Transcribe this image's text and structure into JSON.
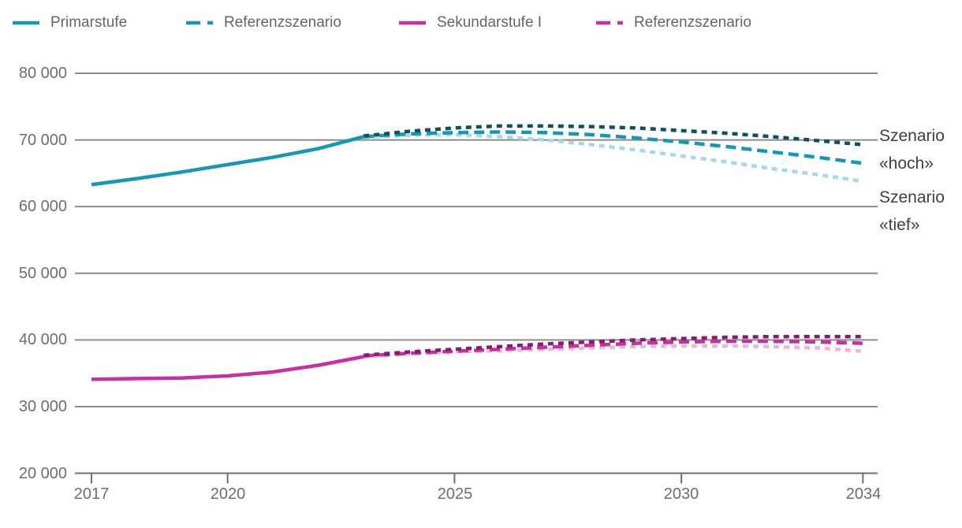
{
  "legend": {
    "items": [
      {
        "label": "Primarstufe",
        "color": "#1399B5",
        "style": "solid"
      },
      {
        "label": "Referenzszenario",
        "color": "#1399B5",
        "style": "long-dash"
      },
      {
        "label": "Sekundarstufe I",
        "color": "#C92FA3",
        "style": "solid"
      },
      {
        "label": "Referenzszenario",
        "color": "#C92FA3",
        "style": "long-dash"
      }
    ]
  },
  "y_axis": {
    "ticks": [
      {
        "label": "80 000",
        "value": 80000
      },
      {
        "label": "70 000",
        "value": 70000
      },
      {
        "label": "60 000",
        "value": 60000
      },
      {
        "label": "50 000",
        "value": 50000
      },
      {
        "label": "40 000",
        "value": 40000
      },
      {
        "label": "30 000",
        "value": 30000
      },
      {
        "label": "20 000",
        "value": 20000
      }
    ]
  },
  "x_axis": {
    "ticks": [
      {
        "label": "2017",
        "value": 2017
      },
      {
        "label": "2020",
        "value": 2020
      },
      {
        "label": "2025",
        "value": 2025
      },
      {
        "label": "2030",
        "value": 2030
      },
      {
        "label": "2034",
        "value": 2034
      }
    ]
  },
  "annotations": {
    "hoch": "Szenario «hoch»",
    "tief": "Szenario «tief»"
  },
  "colors": {
    "teal": "#1399B5",
    "teal_dark": "#0F5161",
    "teal_light": "#A6D9E4",
    "magenta": "#C92FA3",
    "magenta_dark": "#871A72",
    "magenta_light": "#EBB6DE",
    "gridline": "#8B8B8B",
    "axis": "#6F6F6F",
    "tick_text": "#6E6E6E",
    "legend_text": "#63656A",
    "annotation_text": "#3E4043"
  },
  "chart_data": {
    "type": "line",
    "title": "",
    "xlabel": "",
    "ylabel": "",
    "xlim": [
      2017,
      2034
    ],
    "ylim": [
      20000,
      80000
    ],
    "grid": "horizontal",
    "legend_position": "top-left",
    "series": [
      {
        "name": "Primarstufe — Szenario «tief»",
        "color": "#A6D9E4",
        "style": "short-dash",
        "x": [
          2023,
          2024,
          2025,
          2026,
          2027,
          2028,
          2029,
          2030,
          2031,
          2032,
          2033,
          2034
        ],
        "values": [
          70400,
          70700,
          70800,
          70500,
          70000,
          69300,
          68500,
          67600,
          66700,
          65700,
          64800,
          63800
        ]
      },
      {
        "name": "Primarstufe — Referenzszenario",
        "color": "#1399B5",
        "style": "long-dash",
        "x": [
          2023,
          2024,
          2025,
          2026,
          2027,
          2028,
          2029,
          2030,
          2031,
          2032,
          2033,
          2034
        ],
        "values": [
          70500,
          70900,
          71100,
          71200,
          71100,
          70800,
          70300,
          69700,
          69000,
          68200,
          67400,
          66500
        ]
      },
      {
        "name": "Primarstufe — Szenario «hoch»",
        "color": "#0F5161",
        "style": "short-dash",
        "x": [
          2023,
          2024,
          2025,
          2026,
          2027,
          2028,
          2029,
          2030,
          2031,
          2032,
          2033,
          2034
        ],
        "values": [
          70600,
          71300,
          71800,
          72100,
          72100,
          72000,
          71800,
          71400,
          71000,
          70500,
          69900,
          69300
        ]
      },
      {
        "name": "Primarstufe — beobachtet",
        "color": "#1399B5",
        "style": "solid",
        "x": [
          2017,
          2018,
          2019,
          2020,
          2021,
          2022,
          2023
        ],
        "values": [
          63300,
          64200,
          65200,
          66300,
          67400,
          68700,
          70500
        ]
      },
      {
        "name": "Sekundarstufe I — Szenario «tief»",
        "color": "#EBB6DE",
        "style": "short-dash",
        "x": [
          2023,
          2024,
          2025,
          2026,
          2027,
          2028,
          2029,
          2030,
          2031,
          2032,
          2033,
          2034
        ],
        "values": [
          37500,
          37900,
          38200,
          38400,
          38600,
          38800,
          39000,
          39100,
          39100,
          39000,
          38800,
          38300
        ]
      },
      {
        "name": "Sekundarstufe I — Referenzszenario",
        "color": "#C92FA3",
        "style": "long-dash",
        "x": [
          2023,
          2024,
          2025,
          2026,
          2027,
          2028,
          2029,
          2030,
          2031,
          2032,
          2033,
          2034
        ],
        "values": [
          37600,
          38000,
          38300,
          38600,
          38900,
          39200,
          39500,
          39700,
          39800,
          39800,
          39700,
          39500
        ]
      },
      {
        "name": "Sekundarstufe I — Szenario «hoch»",
        "color": "#871A72",
        "style": "short-dash",
        "x": [
          2023,
          2024,
          2025,
          2026,
          2027,
          2028,
          2029,
          2030,
          2031,
          2032,
          2033,
          2034
        ],
        "values": [
          37700,
          38200,
          38600,
          39000,
          39400,
          39700,
          40000,
          40200,
          40400,
          40500,
          40500,
          40500
        ]
      },
      {
        "name": "Sekundarstufe I — beobachtet",
        "color": "#C92FA3",
        "style": "solid",
        "x": [
          2017,
          2018,
          2019,
          2020,
          2021,
          2022,
          2023
        ],
        "values": [
          34100,
          34200,
          34300,
          34600,
          35200,
          36200,
          37500
        ]
      }
    ]
  }
}
